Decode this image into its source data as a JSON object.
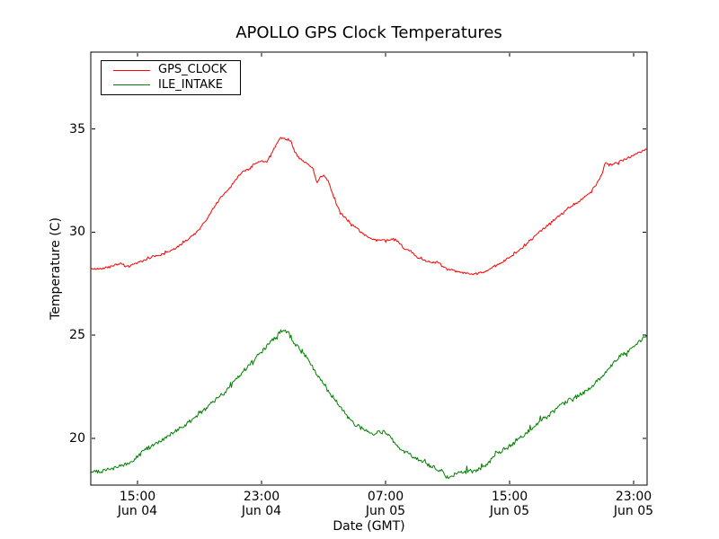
{
  "chart_data": {
    "type": "line",
    "title": "APOLLO GPS Clock Temperatures",
    "xlabel": "Date (GMT)",
    "ylabel": "Temperature (C)",
    "grid": false,
    "legend": {
      "position": "upper-left",
      "entries": [
        "GPS_CLOCK",
        "ILE_INTAKE"
      ]
    },
    "y_ticks": [
      20,
      25,
      30,
      35
    ],
    "ylim": [
      17.7,
      38.7
    ],
    "x_unit": "hours, 0 = Jun 04 12:00 GMT (read from axis ticks)",
    "xlim_hours": [
      0,
      35.9
    ],
    "x_ticks": [
      {
        "hour": 3,
        "time": "15:00",
        "date": "Jun 04"
      },
      {
        "hour": 11,
        "time": "23:00",
        "date": "Jun 04"
      },
      {
        "hour": 19,
        "time": "07:00",
        "date": "Jun 05"
      },
      {
        "hour": 27,
        "time": "15:00",
        "date": "Jun 05"
      },
      {
        "hour": 35,
        "time": "23:00",
        "date": "Jun 05"
      }
    ],
    "series": [
      {
        "name": "GPS_CLOCK",
        "color": "#ff0000",
        "points": [
          [
            0,
            28.2
          ],
          [
            0.4,
            28.22
          ],
          [
            0.8,
            28.25
          ],
          [
            1.2,
            28.3
          ],
          [
            1.6,
            28.42
          ],
          [
            2.0,
            28.48
          ],
          [
            2.3,
            28.3
          ],
          [
            2.6,
            28.38
          ],
          [
            3.0,
            28.5
          ],
          [
            3.5,
            28.65
          ],
          [
            4.0,
            28.82
          ],
          [
            4.5,
            28.9
          ],
          [
            5.0,
            29.05
          ],
          [
            5.5,
            29.25
          ],
          [
            6.0,
            29.5
          ],
          [
            6.5,
            29.8
          ],
          [
            7.0,
            30.15
          ],
          [
            7.5,
            30.65
          ],
          [
            8.0,
            31.3
          ],
          [
            8.5,
            31.8
          ],
          [
            9.0,
            32.2
          ],
          [
            9.5,
            32.7
          ],
          [
            9.8,
            32.95
          ],
          [
            10.2,
            33.05
          ],
          [
            10.6,
            33.35
          ],
          [
            11.0,
            33.45
          ],
          [
            11.3,
            33.38
          ],
          [
            11.6,
            33.75
          ],
          [
            12.0,
            34.3
          ],
          [
            12.2,
            34.55
          ],
          [
            12.6,
            34.5
          ],
          [
            12.9,
            34.4
          ],
          [
            13.1,
            33.95
          ],
          [
            13.4,
            33.6
          ],
          [
            13.7,
            33.4
          ],
          [
            14.0,
            33.32
          ],
          [
            14.3,
            33.1
          ],
          [
            14.55,
            32.4
          ],
          [
            14.8,
            32.65
          ],
          [
            15.0,
            32.72
          ],
          [
            15.3,
            32.45
          ],
          [
            15.7,
            31.6
          ],
          [
            16.0,
            31.05
          ],
          [
            16.5,
            30.6
          ],
          [
            17.0,
            30.25
          ],
          [
            17.5,
            29.95
          ],
          [
            18.0,
            29.68
          ],
          [
            18.4,
            29.6
          ],
          [
            18.8,
            29.62
          ],
          [
            19.2,
            29.6
          ],
          [
            19.5,
            29.7
          ],
          [
            19.8,
            29.55
          ],
          [
            20.2,
            29.2
          ],
          [
            20.6,
            29.1
          ],
          [
            21.0,
            28.8
          ],
          [
            21.5,
            28.62
          ],
          [
            22.0,
            28.5
          ],
          [
            22.4,
            28.55
          ],
          [
            22.7,
            28.3
          ],
          [
            23.0,
            28.18
          ],
          [
            23.5,
            28.1
          ],
          [
            24.0,
            28.02
          ],
          [
            24.5,
            27.95
          ],
          [
            25.0,
            28.0
          ],
          [
            25.5,
            28.1
          ],
          [
            26.0,
            28.35
          ],
          [
            26.5,
            28.55
          ],
          [
            27.0,
            28.75
          ],
          [
            27.5,
            29.05
          ],
          [
            28.0,
            29.35
          ],
          [
            28.5,
            29.7
          ],
          [
            29.0,
            30.05
          ],
          [
            29.5,
            30.35
          ],
          [
            30.0,
            30.68
          ],
          [
            30.5,
            30.95
          ],
          [
            31.0,
            31.28
          ],
          [
            31.5,
            31.5
          ],
          [
            32.0,
            31.78
          ],
          [
            32.5,
            32.2
          ],
          [
            32.8,
            32.6
          ],
          [
            33.0,
            32.85
          ],
          [
            33.15,
            33.4
          ],
          [
            33.4,
            33.25
          ],
          [
            33.7,
            33.3
          ],
          [
            34.0,
            33.38
          ],
          [
            34.5,
            33.55
          ],
          [
            35.0,
            33.72
          ],
          [
            35.5,
            33.9
          ],
          [
            35.9,
            34.02
          ]
        ]
      },
      {
        "name": "ILE_INTAKE",
        "color": "#008000",
        "points": [
          [
            0,
            18.35
          ],
          [
            0.5,
            18.4
          ],
          [
            1.0,
            18.45
          ],
          [
            1.5,
            18.55
          ],
          [
            2.0,
            18.68
          ],
          [
            2.5,
            18.85
          ],
          [
            3.0,
            19.1
          ],
          [
            3.5,
            19.45
          ],
          [
            4.0,
            19.7
          ],
          [
            4.5,
            19.9
          ],
          [
            5.0,
            20.12
          ],
          [
            5.5,
            20.35
          ],
          [
            6.0,
            20.6
          ],
          [
            6.5,
            20.9
          ],
          [
            7.0,
            21.2
          ],
          [
            7.5,
            21.5
          ],
          [
            8.0,
            21.82
          ],
          [
            8.5,
            22.15
          ],
          [
            9.0,
            22.5
          ],
          [
            9.5,
            22.95
          ],
          [
            10.0,
            23.4
          ],
          [
            10.5,
            23.8
          ],
          [
            11.0,
            24.2
          ],
          [
            11.5,
            24.6
          ],
          [
            12.0,
            25.0
          ],
          [
            12.4,
            25.32
          ],
          [
            12.7,
            25.15
          ],
          [
            13.0,
            24.72
          ],
          [
            13.5,
            24.3
          ],
          [
            14.0,
            23.8
          ],
          [
            14.5,
            23.2
          ],
          [
            15.0,
            22.6
          ],
          [
            15.5,
            22.1
          ],
          [
            16.0,
            21.6
          ],
          [
            16.5,
            21.1
          ],
          [
            17.0,
            20.68
          ],
          [
            17.5,
            20.45
          ],
          [
            18.0,
            20.32
          ],
          [
            18.25,
            20.12
          ],
          [
            18.5,
            20.3
          ],
          [
            19.0,
            20.28
          ],
          [
            19.4,
            19.95
          ],
          [
            19.8,
            19.55
          ],
          [
            20.2,
            19.35
          ],
          [
            20.7,
            19.15
          ],
          [
            21.2,
            18.95
          ],
          [
            21.7,
            18.75
          ],
          [
            22.2,
            18.55
          ],
          [
            22.7,
            18.38
          ],
          [
            23.0,
            18.08
          ],
          [
            23.3,
            18.22
          ],
          [
            23.7,
            18.3
          ],
          [
            24.2,
            18.38
          ],
          [
            24.7,
            18.42
          ],
          [
            25.2,
            18.55
          ],
          [
            25.6,
            18.72
          ],
          [
            26.0,
            19.18
          ],
          [
            26.3,
            19.32
          ],
          [
            27.0,
            19.62
          ],
          [
            27.5,
            19.9
          ],
          [
            28.0,
            20.2
          ],
          [
            28.5,
            20.5
          ],
          [
            29.0,
            20.82
          ],
          [
            29.5,
            21.1
          ],
          [
            30.0,
            21.42
          ],
          [
            30.5,
            21.68
          ],
          [
            31.0,
            21.92
          ],
          [
            31.5,
            22.1
          ],
          [
            32.0,
            22.32
          ],
          [
            32.5,
            22.65
          ],
          [
            33.0,
            23.0
          ],
          [
            33.5,
            23.45
          ],
          [
            34.0,
            23.9
          ],
          [
            34.5,
            24.18
          ],
          [
            35.0,
            24.45
          ],
          [
            35.5,
            24.75
          ],
          [
            35.9,
            25.0
          ]
        ]
      }
    ]
  }
}
